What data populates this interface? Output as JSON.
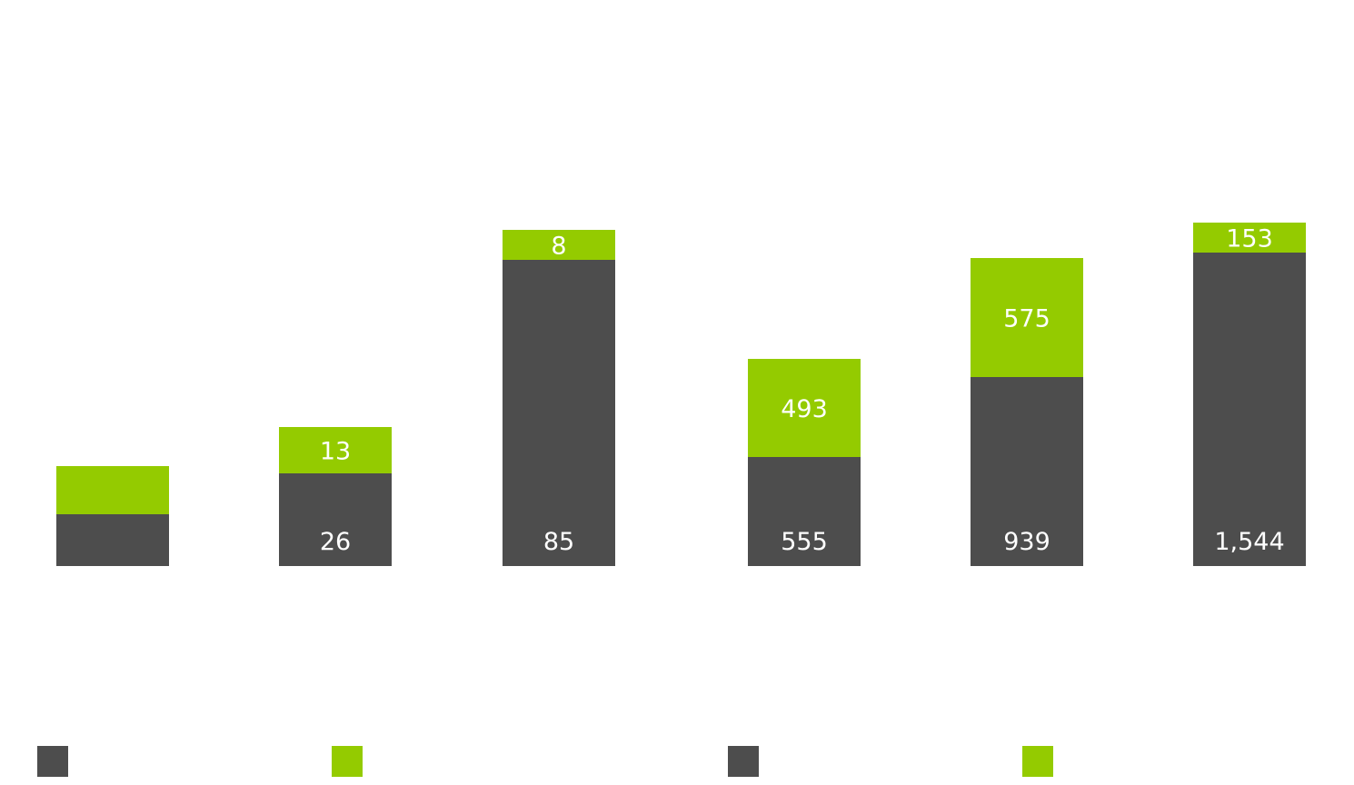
{
  "chart_data": {
    "type": "bar",
    "stacked": true,
    "categories": [
      "",
      "",
      "",
      "",
      "",
      ""
    ],
    "series": [
      {
        "color": "#4d4d4d",
        "values": [
          57,
          102,
          337,
          120,
          208,
          345
        ],
        "labels": [
          "",
          "26",
          "85",
          "555",
          "939",
          "1,544"
        ]
      },
      {
        "color": "#94cb00",
        "values": [
          53,
          51,
          33,
          108,
          131,
          33
        ],
        "labels": [
          "",
          "13",
          "8",
          "493",
          "575",
          "153"
        ]
      }
    ],
    "ylim": [
      0,
      380
    ],
    "grid": false,
    "legend": {
      "position": "bottom",
      "entries": [
        {
          "color": "#4d4d4d"
        },
        {
          "color": "#94cb00"
        },
        {
          "color": "#4d4d4d"
        },
        {
          "color": "#94cb00"
        }
      ]
    }
  }
}
